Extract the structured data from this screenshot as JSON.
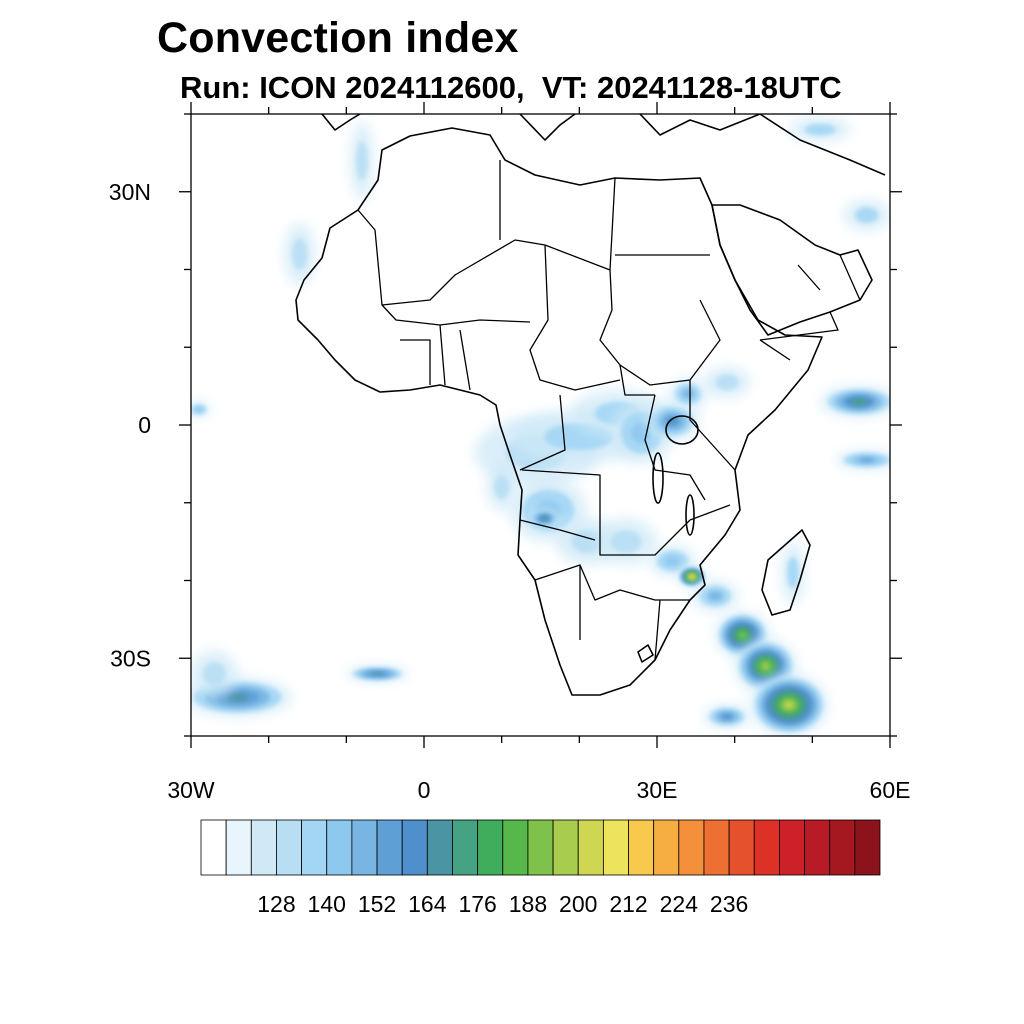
{
  "title": "Convection index",
  "subtitle": "Run: ICON 2024112600,  VT: 20241128-18UTC",
  "map": {
    "lon_range": [
      -30,
      60
    ],
    "lat_range": [
      -40,
      40
    ],
    "x_ticks": [
      {
        "value": -30,
        "label": "30W"
      },
      {
        "value": 0,
        "label": "0"
      },
      {
        "value": 30,
        "label": "30E"
      },
      {
        "value": 60,
        "label": "60E"
      }
    ],
    "y_ticks": [
      {
        "value": 30,
        "label": "30N"
      },
      {
        "value": 0,
        "label": "0"
      },
      {
        "value": -30,
        "label": "30S"
      }
    ],
    "minor_step_deg": 10
  },
  "colorbar": {
    "colors": [
      "#ffffff",
      "#e8f5fc",
      "#cfe9f7",
      "#b8def4",
      "#a3d6f5",
      "#8dc8ee",
      "#78b5e3",
      "#5e9fd6",
      "#4f8fcb",
      "#4a94a3",
      "#45a383",
      "#3fad5c",
      "#56b84a",
      "#7ec24b",
      "#a8cc4e",
      "#cfd752",
      "#eee35c",
      "#f8c94c",
      "#f6ad41",
      "#f4903b",
      "#ee6f32",
      "#e6512d",
      "#dd3128",
      "#cc2129",
      "#b81b25",
      "#a51820",
      "#8c131b"
    ],
    "labels": [
      "128",
      "140",
      "152",
      "164",
      "176",
      "188",
      "200",
      "212",
      "224",
      "236"
    ]
  },
  "convection_regions": [
    {
      "lon": 14.5,
      "lat": -3.5,
      "rlon": 8,
      "rlat": 4.5,
      "level": 3
    },
    {
      "lon": 20,
      "lat": -1.5,
      "rlon": 9,
      "rlat": 3.5,
      "level": 4
    },
    {
      "lon": 25,
      "lat": 1.5,
      "rlon": 6,
      "rlat": 3,
      "level": 4
    },
    {
      "lon": 28,
      "lat": -1,
      "rlon": 4,
      "rlat": 4,
      "level": 5
    },
    {
      "lon": 32,
      "lat": 0.5,
      "rlon": 3.5,
      "rlat": 2.5,
      "level": 8
    },
    {
      "lon": 34,
      "lat": 4,
      "rlon": 2.5,
      "rlat": 2,
      "level": 6
    },
    {
      "lon": 39,
      "lat": 5.5,
      "rlon": 3,
      "rlat": 2,
      "level": 3
    },
    {
      "lon": 16,
      "lat": -11,
      "rlon": 5,
      "rlat": 4,
      "level": 5
    },
    {
      "lon": 15.5,
      "lat": -12,
      "rlon": 2,
      "rlat": 1.2,
      "level": 10
    },
    {
      "lon": 21,
      "lat": -15,
      "rlon": 4,
      "rlat": 3,
      "level": 3
    },
    {
      "lon": 26,
      "lat": -15,
      "rlon": 4,
      "rlat": 3,
      "level": 3
    },
    {
      "lon": 32,
      "lat": -17.5,
      "rlon": 3,
      "rlat": 2,
      "level": 5
    },
    {
      "lon": 34.5,
      "lat": -19.5,
      "rlon": 1.8,
      "rlat": 1.3,
      "level": 18
    },
    {
      "lon": 37.5,
      "lat": -22,
      "rlon": 3,
      "rlat": 2,
      "level": 6
    },
    {
      "lon": 41,
      "lat": -27,
      "rlon": 3.5,
      "rlat": 3,
      "level": 13
    },
    {
      "lon": 44,
      "lat": -31,
      "rlon": 4,
      "rlat": 3.5,
      "level": 14
    },
    {
      "lon": 47,
      "lat": -36,
      "rlon": 5,
      "rlat": 4,
      "level": 15
    },
    {
      "lon": 39,
      "lat": -37.5,
      "rlon": 3,
      "rlat": 1.5,
      "level": 8
    },
    {
      "lon": 47.5,
      "lat": -19,
      "rlon": 1.5,
      "rlat": 4,
      "level": 4
    },
    {
      "lon": 56,
      "lat": 3,
      "rlon": 5,
      "rlat": 2,
      "level": 10
    },
    {
      "lon": 57,
      "lat": -4.5,
      "rlon": 4,
      "rlat": 1.2,
      "level": 7
    },
    {
      "lon": -24,
      "lat": -35,
      "rlon": 7,
      "rlat": 2.5,
      "level": 9
    },
    {
      "lon": -27,
      "lat": -32,
      "rlon": 3,
      "rlat": 3,
      "level": 3
    },
    {
      "lon": -6,
      "lat": -32,
      "rlon": 4,
      "rlat": 1,
      "level": 9
    },
    {
      "lon": -8,
      "lat": 34,
      "rlon": 1.5,
      "rlat": 5,
      "level": 3
    },
    {
      "lon": -16,
      "lat": 22,
      "rlon": 2,
      "rlat": 4,
      "level": 3
    },
    {
      "lon": 57,
      "lat": 27,
      "rlon": 3,
      "rlat": 2,
      "level": 4
    },
    {
      "lon": 51,
      "lat": 38,
      "rlon": 4,
      "rlat": 1.5,
      "level": 4
    },
    {
      "lon": -29,
      "lat": 2,
      "rlon": 1.5,
      "rlat": 1,
      "level": 5
    },
    {
      "lon": 10,
      "lat": -8,
      "rlon": 2,
      "rlat": 3,
      "level": 3
    }
  ]
}
